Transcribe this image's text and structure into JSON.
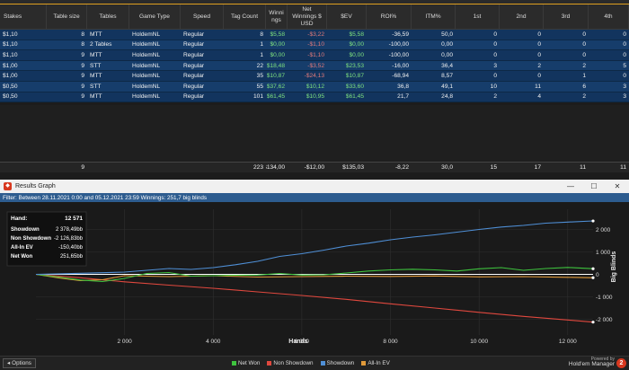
{
  "columns": [
    "Stakes",
    "Table size",
    "Tables",
    "Game Type",
    "Speed",
    "Tag Count",
    "Winni ngs",
    "Net Winnings $ USD",
    "$EV",
    "ROI%",
    "ITM%",
    "1st",
    "2nd",
    "3rd",
    "4th"
  ],
  "rows": [
    [
      "$1,10",
      "8",
      "MTT",
      "HoldemNL",
      "Regular",
      "8",
      "$5,58",
      "-$3,22",
      "$5,58",
      "-36,59",
      "50,0",
      "0",
      "0",
      "0",
      "0"
    ],
    [
      "$1,10",
      "8",
      "2 Tables",
      "HoldemNL",
      "Regular",
      "1",
      "$0,00",
      "-$1,10",
      "$0,00",
      "-100,00",
      "0,00",
      "0",
      "0",
      "0",
      "0"
    ],
    [
      "$1,10",
      "9",
      "MTT",
      "HoldemNL",
      "Regular",
      "1",
      "$0,00",
      "-$1,10",
      "$0,00",
      "-100,00",
      "0,00",
      "0",
      "0",
      "0",
      "0"
    ],
    [
      "$1,00",
      "9",
      "STT",
      "HoldemNL",
      "Regular",
      "22",
      "$18,48",
      "-$3,52",
      "$23,53",
      "-16,00",
      "36,4",
      "3",
      "2",
      "2",
      "5"
    ],
    [
      "$1,00",
      "9",
      "MTT",
      "HoldemNL",
      "Regular",
      "35",
      "$10,87",
      "-$24,13",
      "$10,87",
      "-68,94",
      "8,57",
      "0",
      "0",
      "1",
      "0"
    ],
    [
      "$0,50",
      "9",
      "STT",
      "HoldemNL",
      "Regular",
      "55",
      "$37,62",
      "$10,12",
      "$33,60",
      "36,8",
      "49,1",
      "10",
      "11",
      "6",
      "3"
    ],
    [
      "$0,50",
      "9",
      "MTT",
      "HoldemNL",
      "Regular",
      "101",
      "$61,45",
      "$10,95",
      "$61,45",
      "21,7",
      "24,8",
      "2",
      "4",
      "2",
      "3"
    ]
  ],
  "totals": [
    "",
    "9",
    "",
    "",
    "",
    "223",
    "$134,00",
    "-$12,00",
    "$135,03",
    "-8,22",
    "30,0",
    "15",
    "17",
    "11",
    "11"
  ],
  "window": {
    "title": "Results Graph",
    "minimize": "—",
    "maximize": "☐",
    "close": "✕",
    "filter": "Filter: Between 28.11.2021 0:00 and 05.12.2021 23:59  Winnings: 251,7 big blinds"
  },
  "summary": {
    "hand_label": "Hand:",
    "hand_value": "12 571",
    "rows": [
      {
        "label": "Showdown",
        "value": "2 378,49bb"
      },
      {
        "label": "Non Showdown",
        "value": "-2 126,83bb"
      },
      {
        "label": "All-In EV",
        "value": "-150,40bb"
      },
      {
        "label": "Net Won",
        "value": "251,65bb"
      }
    ]
  },
  "chart_data": {
    "type": "line",
    "xlabel": "Hands",
    "ylabel": "Big Blinds",
    "xlim": [
      0,
      12571
    ],
    "ylim": [
      -2700,
      2900
    ],
    "x_ticks": [
      2000,
      4000,
      6000,
      8000,
      10000,
      12000
    ],
    "x_tick_labels": [
      "2 000",
      "4 000",
      "6 000",
      "8 000",
      "10 000",
      "12 000"
    ],
    "y_ticks": [
      2000,
      1000,
      0,
      -1000,
      -2000
    ],
    "y_tick_labels": [
      "2 000",
      "1 000",
      "0",
      "-1 000",
      "-2 000"
    ],
    "series": [
      {
        "name": "Net Won",
        "color": "#3ec43e",
        "x": [
          0,
          500,
          1000,
          1500,
          2000,
          2500,
          3000,
          3500,
          4000,
          4500,
          5000,
          5500,
          6000,
          6500,
          7000,
          7500,
          8000,
          8500,
          9000,
          9500,
          10000,
          10500,
          11000,
          11500,
          12000,
          12571
        ],
        "y": [
          0,
          -120,
          -250,
          -320,
          -180,
          40,
          80,
          -80,
          -60,
          -40,
          -30,
          40,
          -30,
          -20,
          60,
          150,
          200,
          230,
          200,
          150,
          250,
          300,
          180,
          260,
          310,
          252
        ]
      },
      {
        "name": "Non Showdown",
        "color": "#e0483e",
        "x": [
          0,
          1000,
          2000,
          3000,
          4000,
          5000,
          6000,
          7000,
          8000,
          9000,
          10000,
          11000,
          12000,
          12571
        ],
        "y": [
          0,
          -150,
          -330,
          -480,
          -620,
          -780,
          -940,
          -1110,
          -1310,
          -1500,
          -1690,
          -1870,
          -2030,
          -2127
        ]
      },
      {
        "name": "Showdown",
        "color": "#4f8fd6",
        "x": [
          0,
          1000,
          2000,
          2500,
          3000,
          3500,
          4000,
          4500,
          5000,
          5500,
          6000,
          6500,
          7000,
          7500,
          8000,
          8500,
          9000,
          9500,
          10000,
          10500,
          11000,
          11500,
          12000,
          12571
        ],
        "y": [
          0,
          50,
          100,
          180,
          260,
          220,
          300,
          430,
          580,
          800,
          920,
          1080,
          1260,
          1390,
          1540,
          1660,
          1760,
          1880,
          2000,
          2110,
          2180,
          2280,
          2330,
          2378
        ]
      },
      {
        "name": "All-In EV",
        "color": "#e09a3a",
        "x": [
          0,
          500,
          1000,
          1500,
          2000,
          3000,
          4000,
          5000,
          6000,
          7000,
          8000,
          9000,
          10000,
          11000,
          12000,
          12571
        ],
        "y": [
          0,
          -150,
          -280,
          -240,
          -60,
          -100,
          -60,
          -120,
          -100,
          -80,
          -90,
          -70,
          -110,
          -100,
          -130,
          -150
        ]
      }
    ],
    "zero_line_color": "#ffffff"
  },
  "legend": [
    "Net Won",
    "Non Showdown",
    "Showdown",
    "All-In EV"
  ],
  "bottom": {
    "options_label": "Options",
    "powered_by": "Powered by",
    "brand": "Hold'em Manager",
    "brand_num": "2"
  }
}
